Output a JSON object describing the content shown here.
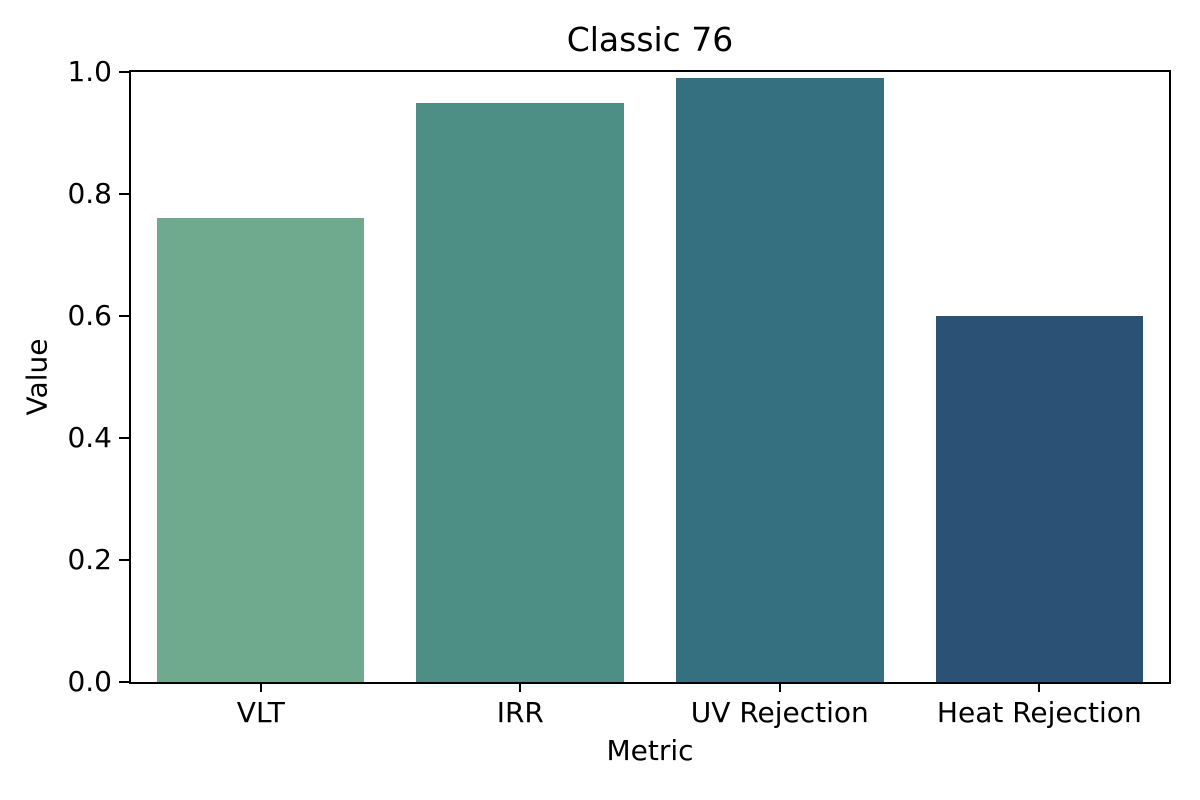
{
  "chart_data": {
    "type": "bar",
    "title": "Classic 76",
    "xlabel": "Metric",
    "ylabel": "Value",
    "categories": [
      "VLT",
      "IRR",
      "UV Rejection",
      "Heat Rejection"
    ],
    "values": [
      0.76,
      0.95,
      0.99,
      0.6
    ],
    "bar_colors": [
      "#6faa8e",
      "#4d8e85",
      "#34707f",
      "#2b5175"
    ],
    "ylim": [
      0.0,
      1.0
    ],
    "yticks": [
      0.0,
      0.2,
      0.4,
      0.6,
      0.8,
      1.0
    ],
    "ytick_labels": [
      "0.0",
      "0.2",
      "0.4",
      "0.6",
      "0.8",
      "1.0"
    ],
    "grid": false,
    "legend_position": "none",
    "bar_width_fraction": 0.8,
    "axis_color": "#000000",
    "text_color": "#000000",
    "background_color": "#ffffff"
  }
}
